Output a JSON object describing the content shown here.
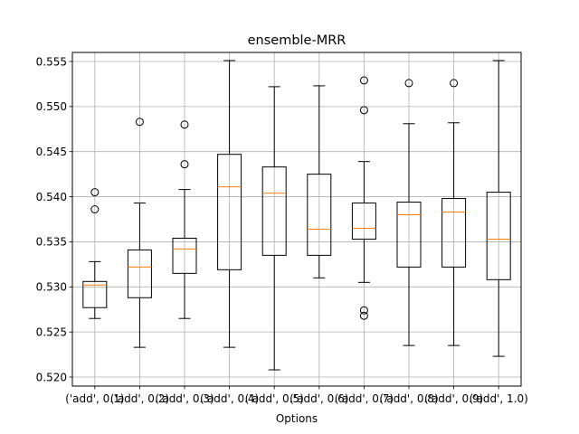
{
  "chart_data": {
    "type": "box",
    "title": "ensemble-MRR",
    "xlabel": "Options",
    "ylabel": "",
    "ylim": [
      0.519,
      0.556
    ],
    "yticks": [
      0.52,
      0.525,
      0.53,
      0.535,
      0.54,
      0.545,
      0.55,
      0.555
    ],
    "ytick_labels": [
      "0.520",
      "0.525",
      "0.530",
      "0.535",
      "0.540",
      "0.545",
      "0.550",
      "0.555"
    ],
    "grid": true,
    "legend": "none",
    "colors": {
      "box": "#000000",
      "median": "#ff7f0e",
      "grid": "#b0b0b0"
    },
    "categories": [
      "('add', 0.1)",
      "('add', 0.2)",
      "('add', 0.3)",
      "('add', 0.4)",
      "('add', 0.5)",
      "('add', 0.6)",
      "('add', 0.7)",
      "('add', 0.8)",
      "('add', 0.9)",
      "('add', 1.0)"
    ],
    "boxes": [
      {
        "whislo": 0.5265,
        "q1": 0.5277,
        "med": 0.5302,
        "q3": 0.5306,
        "whishi": 0.5328,
        "fliers": [
          0.5386,
          0.5405
        ]
      },
      {
        "whislo": 0.5233,
        "q1": 0.5288,
        "med": 0.5322,
        "q3": 0.5341,
        "whishi": 0.5393,
        "fliers": [
          0.5483
        ]
      },
      {
        "whislo": 0.5265,
        "q1": 0.5315,
        "med": 0.5342,
        "q3": 0.5354,
        "whishi": 0.5408,
        "fliers": [
          0.5436,
          0.548
        ]
      },
      {
        "whislo": 0.5233,
        "q1": 0.5319,
        "med": 0.5411,
        "q3": 0.5447,
        "whishi": 0.5551,
        "fliers": []
      },
      {
        "whislo": 0.5208,
        "q1": 0.5335,
        "med": 0.5404,
        "q3": 0.5433,
        "whishi": 0.5522,
        "fliers": []
      },
      {
        "whislo": 0.531,
        "q1": 0.5335,
        "med": 0.5364,
        "q3": 0.5425,
        "whishi": 0.5523,
        "fliers": []
      },
      {
        "whislo": 0.5305,
        "q1": 0.5353,
        "med": 0.5365,
        "q3": 0.5393,
        "whishi": 0.5439,
        "fliers": [
          0.5268,
          0.5274,
          0.5496,
          0.5529
        ]
      },
      {
        "whislo": 0.5235,
        "q1": 0.5322,
        "med": 0.538,
        "q3": 0.5394,
        "whishi": 0.5481,
        "fliers": [
          0.5526
        ]
      },
      {
        "whislo": 0.5235,
        "q1": 0.5322,
        "med": 0.5383,
        "q3": 0.5398,
        "whishi": 0.5482,
        "fliers": [
          0.5526
        ]
      },
      {
        "whislo": 0.5223,
        "q1": 0.5308,
        "med": 0.5353,
        "q3": 0.5405,
        "whishi": 0.5551,
        "fliers": []
      }
    ]
  }
}
